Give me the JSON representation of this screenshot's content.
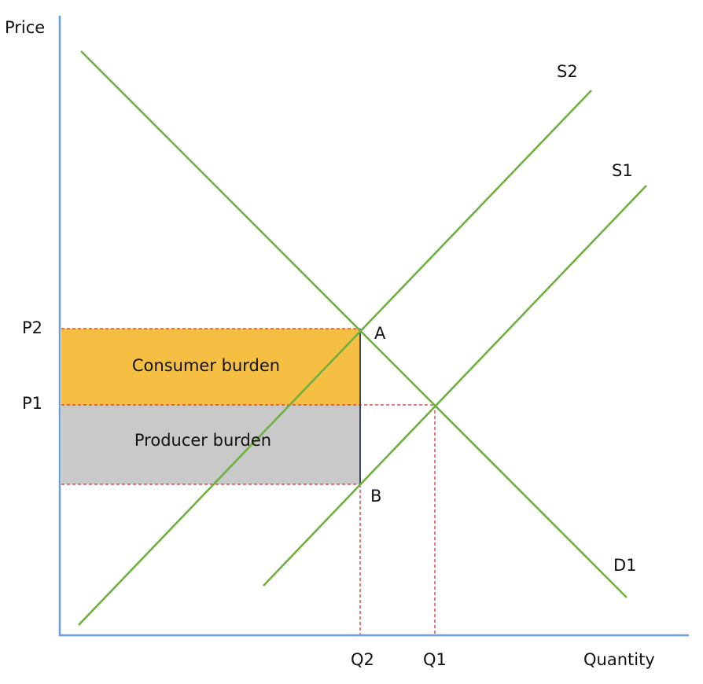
{
  "axes": {
    "y_label": "Price",
    "x_label": "Quantity"
  },
  "curves": {
    "s2": "S2",
    "s1": "S1",
    "d1": "D1"
  },
  "prices": {
    "p2": "P2",
    "p1": "P1"
  },
  "quantities": {
    "q2": "Q2",
    "q1": "Q1"
  },
  "points": {
    "a": "A",
    "b": "B"
  },
  "areas": {
    "consumer": "Consumer burden",
    "producer": "Producer burden"
  }
}
